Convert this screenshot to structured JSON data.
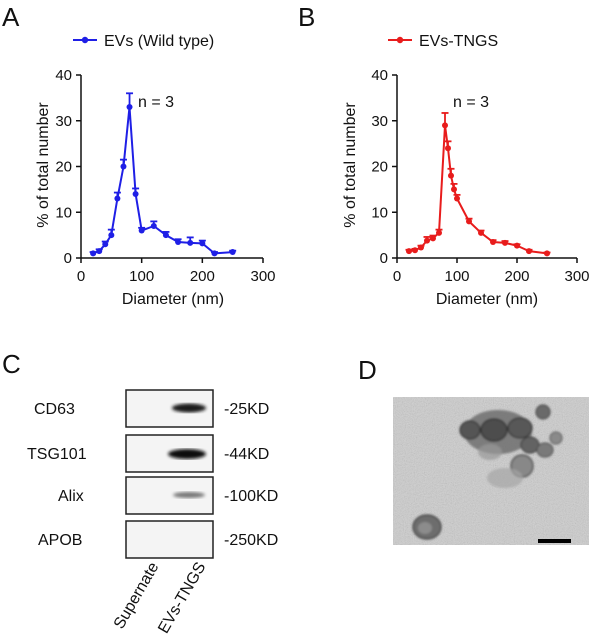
{
  "panels": {
    "a": "A",
    "b": "B",
    "c": "C",
    "d": "D"
  },
  "chart_data": [
    {
      "type": "line",
      "panel": "A",
      "legend_position": "top",
      "xlabel": "Diameter (nm)",
      "ylabel": "% of total number",
      "xlim": [
        0,
        300
      ],
      "ylim": [
        0,
        40
      ],
      "xticks": [
        0,
        100,
        200,
        300
      ],
      "yticks": [
        0,
        10,
        20,
        30,
        40
      ],
      "annotation": "n = 3",
      "series": [
        {
          "name": "EVs (Wild type)",
          "color": "#1f1fe6",
          "x": [
            20,
            30,
            40,
            50,
            60,
            70,
            80,
            90,
            100,
            120,
            140,
            160,
            180,
            200,
            220,
            250
          ],
          "y": [
            1,
            1.5,
            3,
            5,
            13,
            20,
            33,
            14,
            6,
            7,
            5,
            3.5,
            3.3,
            3.2,
            1,
            1.3
          ],
          "err": [
            0.3,
            0.4,
            0.6,
            1.2,
            1.3,
            1.5,
            3,
            1.2,
            0.6,
            1,
            0.7,
            0.6,
            1.2,
            0.6,
            0.3,
            0.3
          ]
        }
      ]
    },
    {
      "type": "line",
      "panel": "B",
      "legend_position": "top",
      "xlabel": "Diameter (nm)",
      "ylabel": "% of total number",
      "xlim": [
        0,
        300
      ],
      "ylim": [
        0,
        40
      ],
      "xticks": [
        0,
        100,
        200,
        300
      ],
      "yticks": [
        0,
        10,
        20,
        30,
        40
      ],
      "annotation": "n = 3",
      "series": [
        {
          "name": "EVs-TNGS",
          "color": "#e81c1c",
          "x": [
            20,
            30,
            40,
            50,
            60,
            70,
            80,
            85,
            90,
            95,
            100,
            120,
            140,
            160,
            180,
            200,
            220,
            250
          ],
          "y": [
            1.5,
            1.7,
            2.3,
            3.8,
            4.3,
            5.5,
            29,
            24,
            18,
            15,
            13,
            8,
            5.5,
            3.5,
            3.3,
            2.7,
            1.5,
            1
          ],
          "err": [
            0.3,
            0.3,
            0.4,
            0.8,
            0.6,
            0.7,
            2.7,
            1.5,
            1.5,
            1.2,
            0.8,
            0.6,
            0.5,
            0.4,
            0.4,
            0.3,
            0.3,
            0.2
          ]
        }
      ]
    }
  ],
  "western_blot": {
    "rows": [
      {
        "label": "CD63",
        "size": "-25KD",
        "band": "strong"
      },
      {
        "label": "TSG101",
        "size": "-44KD",
        "band": "strong"
      },
      {
        "label": "Alix",
        "size": "-100KD",
        "band": "weak"
      },
      {
        "label": "APOB",
        "size": "-250KD",
        "band": "none"
      }
    ],
    "lanes": [
      "Supernate",
      "EVs-TNGS"
    ]
  },
  "micrograph": {
    "style": "TEM grayscale image with scale bar"
  }
}
